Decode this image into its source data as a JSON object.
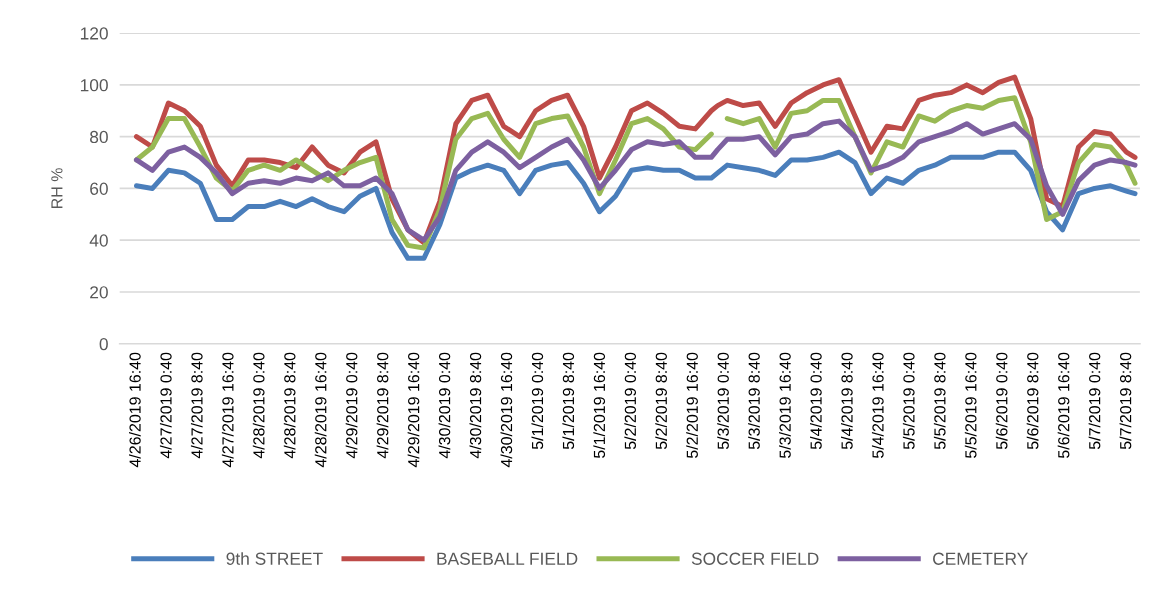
{
  "chart_data": {
    "type": "line",
    "ylabel": "RH %",
    "x": [
      "2019-04-26T16:40",
      "2019-04-26T20:48",
      "2019-04-27T00:55",
      "2019-04-27T05:03",
      "2019-04-27T09:10",
      "2019-04-27T13:18",
      "2019-04-27T17:26",
      "2019-04-27T21:33",
      "2019-04-28T01:41",
      "2019-04-28T05:48",
      "2019-04-28T09:56",
      "2019-04-28T14:04",
      "2019-04-28T18:11",
      "2019-04-28T22:19",
      "2019-04-29T02:26",
      "2019-04-29T06:34",
      "2019-04-29T10:42",
      "2019-04-29T14:49",
      "2019-04-29T18:57",
      "2019-04-29T23:04",
      "2019-04-30T03:12",
      "2019-04-30T07:20",
      "2019-04-30T11:27",
      "2019-04-30T15:35",
      "2019-04-30T19:42",
      "2019-04-30T23:50",
      "2019-05-01T03:58",
      "2019-05-01T08:05",
      "2019-05-01T12:13",
      "2019-05-01T16:20",
      "2019-05-01T20:28",
      "2019-05-02T00:36",
      "2019-05-02T04:43",
      "2019-05-02T08:51",
      "2019-05-02T12:58",
      "2019-05-02T17:06",
      "2019-05-02T21:14",
      "2019-05-02T22:52",
      "2019-05-03T01:21",
      "2019-05-03T05:29",
      "2019-05-03T09:36",
      "2019-05-03T13:44",
      "2019-05-03T17:52",
      "2019-05-03T21:59",
      "2019-05-04T02:07",
      "2019-05-04T06:14",
      "2019-05-04T10:22",
      "2019-05-04T14:30",
      "2019-05-04T18:37",
      "2019-05-04T22:45",
      "2019-05-05T02:52",
      "2019-05-05T07:00",
      "2019-05-05T11:08",
      "2019-05-05T15:15",
      "2019-05-05T19:23",
      "2019-05-05T23:30",
      "2019-05-06T03:38",
      "2019-05-06T07:46",
      "2019-05-06T11:53",
      "2019-05-06T16:01",
      "2019-05-06T20:08",
      "2019-05-07T00:16",
      "2019-05-07T04:24",
      "2019-05-07T08:31",
      "2019-05-07T10:44"
    ],
    "series": [
      {
        "name": "9th STREET",
        "color": "#4a7ebb",
        "values": [
          61,
          60,
          67,
          66,
          62,
          48,
          48,
          53,
          53,
          55,
          53,
          56,
          53,
          51,
          57,
          60,
          43,
          33,
          33,
          46,
          64,
          67,
          69,
          67,
          58,
          67,
          69,
          70,
          62,
          51,
          57,
          67,
          68,
          67,
          67,
          64,
          64,
          66,
          69,
          68,
          67,
          65,
          71,
          71,
          72,
          74,
          70,
          58,
          64,
          62,
          67,
          69,
          72,
          72,
          72,
          74,
          74,
          67,
          51,
          44,
          58,
          60,
          61,
          59,
          58
        ]
      },
      {
        "name": "BASEBALL FIELD",
        "color": "#be4b48",
        "values": [
          80,
          76,
          93,
          90,
          84,
          69,
          61,
          71,
          71,
          70,
          68,
          76,
          69,
          66,
          74,
          78,
          56,
          44,
          39,
          55,
          85,
          94,
          96,
          84,
          80,
          90,
          94,
          96,
          84,
          64,
          76,
          90,
          93,
          89,
          84,
          83,
          90,
          92,
          94,
          92,
          93,
          84,
          93,
          97,
          100,
          102,
          88,
          74,
          84,
          83,
          94,
          96,
          97,
          100,
          97,
          101,
          103,
          87,
          56,
          53,
          76,
          82,
          81,
          74,
          72
        ]
      },
      {
        "name": "SOCCER FIELD",
        "color": "#98b954",
        "values": [
          71,
          76,
          87,
          87,
          76,
          64,
          59,
          67,
          69,
          67,
          71,
          67,
          63,
          67,
          70,
          72,
          48,
          38,
          37,
          52,
          79,
          87,
          89,
          79,
          72,
          85,
          87,
          88,
          76,
          58,
          71,
          85,
          87,
          83,
          76,
          75,
          81,
          null,
          87,
          85,
          87,
          76,
          89,
          90,
          94,
          94,
          80,
          66,
          78,
          76,
          88,
          86,
          90,
          92,
          91,
          94,
          95,
          78,
          48,
          51,
          70,
          77,
          76,
          69,
          62
        ]
      },
      {
        "name": "CEMETERY",
        "color": "#7d60a0",
        "values": [
          71,
          67,
          74,
          76,
          72,
          66,
          58,
          62,
          63,
          62,
          64,
          63,
          66,
          61,
          61,
          64,
          58,
          44,
          40,
          49,
          67,
          74,
          78,
          74,
          68,
          72,
          76,
          79,
          71,
          60,
          67,
          75,
          78,
          77,
          78,
          72,
          72,
          75,
          79,
          79,
          80,
          73,
          80,
          81,
          85,
          86,
          80,
          67,
          69,
          72,
          78,
          80,
          82,
          85,
          81,
          83,
          85,
          79,
          61,
          50,
          63,
          69,
          71,
          70,
          69
        ]
      }
    ],
    "xlim": [
      "2019-04-26T12:20",
      "2019-05-07T12:00"
    ],
    "xticks": [
      {
        "value": "2019-04-26T16:40",
        "label": "4/26/2019 16:40"
      },
      {
        "value": "2019-04-27T00:40",
        "label": "4/27/2019 0:40"
      },
      {
        "value": "2019-04-27T08:40",
        "label": "4/27/2019 8:40"
      },
      {
        "value": "2019-04-27T16:40",
        "label": "4/27/2019 16:40"
      },
      {
        "value": "2019-04-28T00:40",
        "label": "4/28/2019 0:40"
      },
      {
        "value": "2019-04-28T08:40",
        "label": "4/28/2019 8:40"
      },
      {
        "value": "2019-04-28T16:40",
        "label": "4/28/2019 16:40"
      },
      {
        "value": "2019-04-29T00:40",
        "label": "4/29/2019 0:40"
      },
      {
        "value": "2019-04-29T08:40",
        "label": "4/29/2019 8:40"
      },
      {
        "value": "2019-04-29T16:40",
        "label": "4/29/2019 16:40"
      },
      {
        "value": "2019-04-30T00:40",
        "label": "4/30/2019 0:40"
      },
      {
        "value": "2019-04-30T08:40",
        "label": "4/30/2019 8:40"
      },
      {
        "value": "2019-04-30T16:40",
        "label": "4/30/2019 16:40"
      },
      {
        "value": "2019-05-01T00:40",
        "label": "5/1/2019 0:40"
      },
      {
        "value": "2019-05-01T08:40",
        "label": "5/1/2019 8:40"
      },
      {
        "value": "2019-05-01T16:40",
        "label": "5/1/2019 16:40"
      },
      {
        "value": "2019-05-02T00:40",
        "label": "5/2/2019 0:40"
      },
      {
        "value": "2019-05-02T08:40",
        "label": "5/2/2019 8:40"
      },
      {
        "value": "2019-05-02T16:40",
        "label": "5/2/2019 16:40"
      },
      {
        "value": "2019-05-03T00:40",
        "label": "5/3/2019 0:40"
      },
      {
        "value": "2019-05-03T08:40",
        "label": "5/3/2019 8:40"
      },
      {
        "value": "2019-05-03T16:40",
        "label": "5/3/2019 16:40"
      },
      {
        "value": "2019-05-04T00:40",
        "label": "5/4/2019 0:40"
      },
      {
        "value": "2019-05-04T08:40",
        "label": "5/4/2019 8:40"
      },
      {
        "value": "2019-05-04T16:40",
        "label": "5/4/2019 16:40"
      },
      {
        "value": "2019-05-05T00:40",
        "label": "5/5/2019 0:40"
      },
      {
        "value": "2019-05-05T08:40",
        "label": "5/5/2019 8:40"
      },
      {
        "value": "2019-05-05T16:40",
        "label": "5/5/2019 16:40"
      },
      {
        "value": "2019-05-06T00:40",
        "label": "5/6/2019 0:40"
      },
      {
        "value": "2019-05-06T08:40",
        "label": "5/6/2019 8:40"
      },
      {
        "value": "2019-05-06T16:40",
        "label": "5/6/2019 16:40"
      },
      {
        "value": "2019-05-07T00:40",
        "label": "5/7/2019 0:40"
      },
      {
        "value": "2019-05-07T08:40",
        "label": "5/7/2019 8:40"
      }
    ],
    "ylim": [
      0,
      120
    ],
    "yticks": [
      0,
      20,
      40,
      60,
      80,
      100,
      120
    ],
    "grid": "y",
    "legend": "bottom"
  }
}
